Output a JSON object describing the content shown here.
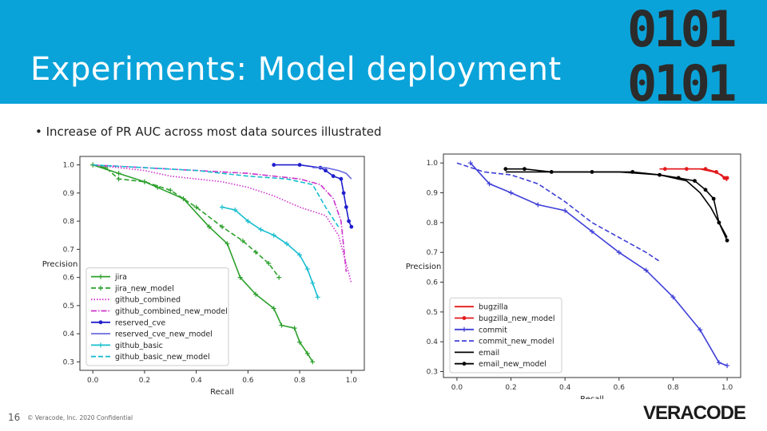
{
  "colors": {
    "accent": "#0aa3d9",
    "logo_dark": "#2b2b2b"
  },
  "slide": {
    "title": "Experiments: Model deployment",
    "bullet": "• Increase of PR AUC across most data sources illustrated",
    "number": "16",
    "copyright": "© Veracode, Inc. 2020 Confidential",
    "binary_logo_text": [
      "0101",
      "0101"
    ],
    "brand_logo_text": "VERACODE",
    "icons": {
      "binary_logo": "binary-0101-logo-icon",
      "brand_logo": "veracode-logo-icon"
    }
  },
  "chart_data": [
    {
      "type": "line",
      "xlabel": "Recall",
      "ylabel": "Precision",
      "xlim": [
        -0.05,
        1.05
      ],
      "ylim": [
        0.27,
        1.03
      ],
      "xticks": [
        "0.0",
        "0.2",
        "0.4",
        "0.6",
        "0.8",
        "1.0"
      ],
      "yticks": [
        "0.3",
        "0.4",
        "0.5",
        "0.6",
        "0.7",
        "0.8",
        "0.9",
        "1.0"
      ],
      "grid": false,
      "legend_position": "bottom-left",
      "series": [
        {
          "name": "jira",
          "color": "#2ca02c",
          "style": "solid",
          "marker": "plus",
          "x": [
            0.0,
            0.1,
            0.2,
            0.25,
            0.35,
            0.45,
            0.52,
            0.57,
            0.63,
            0.7,
            0.73,
            0.78,
            0.8,
            0.83,
            0.85
          ],
          "y": [
            1.0,
            0.97,
            0.94,
            0.92,
            0.88,
            0.78,
            0.72,
            0.6,
            0.54,
            0.49,
            0.43,
            0.42,
            0.37,
            0.33,
            0.3
          ]
        },
        {
          "name": "jira_new_model",
          "color": "#2ca02c",
          "style": "dashed",
          "marker": "plus",
          "x": [
            0.0,
            0.05,
            0.1,
            0.2,
            0.3,
            0.4,
            0.5,
            0.58,
            0.63,
            0.68,
            0.72
          ],
          "y": [
            1.0,
            0.99,
            0.95,
            0.94,
            0.91,
            0.85,
            0.78,
            0.73,
            0.69,
            0.65,
            0.6
          ]
        },
        {
          "name": "github_combined",
          "color": "#cc33cc",
          "style": "dotted",
          "marker": "none",
          "x": [
            0.0,
            0.1,
            0.2,
            0.3,
            0.4,
            0.5,
            0.6,
            0.7,
            0.8,
            0.9,
            0.95,
            1.0
          ],
          "y": [
            1.0,
            0.99,
            0.98,
            0.96,
            0.95,
            0.94,
            0.92,
            0.89,
            0.85,
            0.82,
            0.75,
            0.58
          ]
        },
        {
          "name": "github_combined_new_model",
          "color": "#cc33cc",
          "style": "dashdot",
          "marker": "none",
          "x": [
            0.0,
            0.2,
            0.4,
            0.6,
            0.7,
            0.8,
            0.88,
            0.93,
            0.96,
            0.98
          ],
          "y": [
            1.0,
            0.99,
            0.98,
            0.97,
            0.96,
            0.95,
            0.93,
            0.88,
            0.8,
            0.62
          ]
        },
        {
          "name": "reserved_cve",
          "color": "#1f1fcc",
          "style": "solid",
          "marker": "dot",
          "x": [
            0.7,
            0.8,
            0.88,
            0.9,
            0.93,
            0.96,
            0.97,
            0.98,
            0.99,
            1.0
          ],
          "y": [
            1.0,
            1.0,
            0.99,
            0.98,
            0.96,
            0.95,
            0.9,
            0.85,
            0.8,
            0.78
          ]
        },
        {
          "name": "reserved_cve_new_model",
          "color": "#6a6adf",
          "style": "solid",
          "marker": "none",
          "x": [
            0.85,
            0.9,
            0.95,
            0.98,
            1.0
          ],
          "y": [
            0.99,
            0.99,
            0.98,
            0.97,
            0.95
          ]
        },
        {
          "name": "github_basic",
          "color": "#17becf",
          "style": "solid",
          "marker": "plus",
          "x": [
            0.5,
            0.55,
            0.6,
            0.65,
            0.7,
            0.75,
            0.8,
            0.83,
            0.85,
            0.87
          ],
          "y": [
            0.85,
            0.84,
            0.8,
            0.77,
            0.75,
            0.72,
            0.68,
            0.63,
            0.58,
            0.53
          ]
        },
        {
          "name": "github_basic_new_model",
          "color": "#17becf",
          "style": "dashed",
          "marker": "none",
          "x": [
            0.0,
            0.2,
            0.4,
            0.6,
            0.75,
            0.85,
            0.9,
            0.95
          ],
          "y": [
            1.0,
            0.99,
            0.98,
            0.96,
            0.95,
            0.93,
            0.85,
            0.78
          ]
        }
      ]
    },
    {
      "type": "line",
      "xlabel": "Recall",
      "ylabel": "Precision",
      "xlim": [
        -0.05,
        1.05
      ],
      "ylim": [
        0.28,
        1.03
      ],
      "xticks": [
        "0.0",
        "0.2",
        "0.4",
        "0.6",
        "0.8",
        "1.0"
      ],
      "yticks": [
        "0.3",
        "0.4",
        "0.5",
        "0.6",
        "0.7",
        "0.8",
        "0.9",
        "1.0"
      ],
      "grid": false,
      "legend_position": "bottom-left",
      "series": [
        {
          "name": "bugzilla",
          "color": "#e31a1c",
          "style": "solid",
          "marker": "none",
          "x": [
            0.75,
            0.8,
            0.9,
            0.95,
            0.98,
            1.0
          ],
          "y": [
            0.98,
            0.98,
            0.98,
            0.97,
            0.96,
            0.94
          ]
        },
        {
          "name": "bugzilla_new_model",
          "color": "#e31a1c",
          "style": "solid",
          "marker": "dot",
          "x": [
            0.77,
            0.85,
            0.92,
            0.96,
            0.99,
            1.0
          ],
          "y": [
            0.98,
            0.98,
            0.98,
            0.97,
            0.95,
            0.95
          ]
        },
        {
          "name": "commit",
          "color": "#3f3fd9",
          "style": "solid",
          "marker": "plus",
          "x": [
            0.05,
            0.12,
            0.2,
            0.3,
            0.4,
            0.5,
            0.6,
            0.7,
            0.8,
            0.9,
            0.97,
            1.0
          ],
          "y": [
            1.0,
            0.93,
            0.9,
            0.86,
            0.84,
            0.77,
            0.7,
            0.64,
            0.55,
            0.44,
            0.33,
            0.32
          ]
        },
        {
          "name": "commit_new_model",
          "color": "#3f3fd9",
          "style": "dashed",
          "marker": "none",
          "x": [
            0.0,
            0.1,
            0.2,
            0.3,
            0.4,
            0.5,
            0.6,
            0.7,
            0.75
          ],
          "y": [
            1.0,
            0.97,
            0.96,
            0.93,
            0.87,
            0.8,
            0.75,
            0.7,
            0.67
          ]
        },
        {
          "name": "email",
          "color": "#000000",
          "style": "solid",
          "marker": "none",
          "x": [
            0.18,
            0.4,
            0.6,
            0.75,
            0.85,
            0.9,
            0.94,
            0.97,
            1.0
          ],
          "y": [
            0.97,
            0.97,
            0.97,
            0.96,
            0.94,
            0.9,
            0.85,
            0.8,
            0.75
          ]
        },
        {
          "name": "email_new_model",
          "color": "#000000",
          "style": "solid",
          "marker": "dot",
          "x": [
            0.18,
            0.25,
            0.35,
            0.5,
            0.65,
            0.75,
            0.82,
            0.88,
            0.92,
            0.95,
            0.97,
            1.0
          ],
          "y": [
            0.98,
            0.98,
            0.97,
            0.97,
            0.97,
            0.96,
            0.95,
            0.94,
            0.91,
            0.88,
            0.8,
            0.74
          ]
        }
      ]
    }
  ]
}
